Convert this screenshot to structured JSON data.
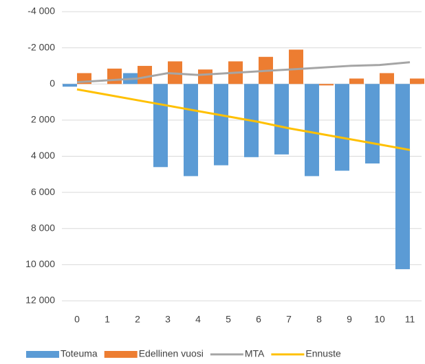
{
  "chart_data": {
    "type": "bar-line",
    "categories": [
      "0",
      "1",
      "2",
      "3",
      "4",
      "5",
      "6",
      "7",
      "8",
      "9",
      "10",
      "11"
    ],
    "series": [
      {
        "name": "Toteuma",
        "type": "bar",
        "color": "#5b9bd5",
        "values": [
          150,
          0,
          -600,
          4600,
          5100,
          4500,
          4050,
          3900,
          5100,
          4800,
          4400,
          10250
        ]
      },
      {
        "name": "Edellinen vuosi",
        "type": "bar",
        "color": "#ed7d31",
        "values": [
          -600,
          -850,
          -1000,
          -1250,
          -800,
          -1250,
          -1500,
          -1900,
          80,
          -300,
          -600,
          -300
        ]
      },
      {
        "name": "MTA",
        "type": "line",
        "color": "#a5a5a5",
        "values": [
          -100,
          -200,
          -300,
          -600,
          -500,
          -600,
          -700,
          -800,
          -900,
          -1000,
          -1050,
          -1200
        ]
      },
      {
        "name": "Ennuste",
        "type": "line",
        "color": "#ffc000",
        "values": [
          300,
          600,
          900,
          1200,
          1500,
          1800,
          2100,
          2450,
          2750,
          3050,
          3350,
          3650
        ]
      }
    ],
    "ylim": [
      -4000,
      12000
    ],
    "y_reversed": true,
    "yticks": [
      {
        "value": -4000,
        "label": "-4 000"
      },
      {
        "value": -2000,
        "label": "-2 000"
      },
      0,
      {
        "value": 2000,
        "label": "2 000"
      },
      {
        "value": 4000,
        "label": "4 000"
      },
      {
        "value": 6000,
        "label": "6 000"
      },
      {
        "value": 8000,
        "label": "8 000"
      },
      {
        "value": 10000,
        "label": "10 000"
      },
      {
        "value": 12000,
        "label": "12 000"
      }
    ],
    "grid": true,
    "legend": "bottom"
  }
}
